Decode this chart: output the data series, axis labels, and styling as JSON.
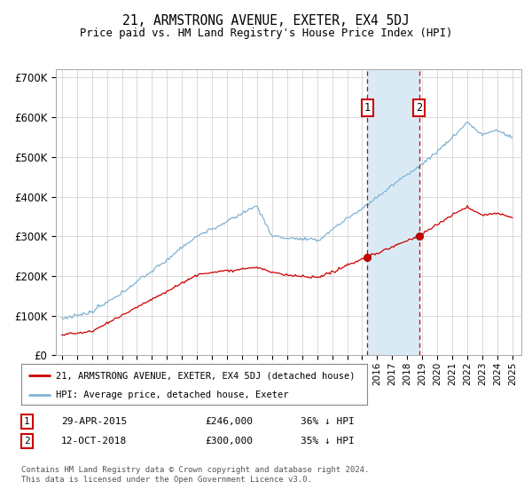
{
  "title": "21, ARMSTRONG AVENUE, EXETER, EX4 5DJ",
  "subtitle": "Price paid vs. HM Land Registry's House Price Index (HPI)",
  "ylabel_ticks": [
    "£0",
    "£100K",
    "£200K",
    "£300K",
    "£400K",
    "£500K",
    "£600K",
    "£700K"
  ],
  "ytick_values": [
    0,
    100000,
    200000,
    300000,
    400000,
    500000,
    600000,
    700000
  ],
  "ylim": [
    0,
    720000
  ],
  "marker1_date": 2015.33,
  "marker2_date": 2018.79,
  "sale1_price": 246000,
  "sale2_price": 300000,
  "hpi_color": "#7fb3d3",
  "price_color": "#cc0000",
  "marker_color": "#cc0000",
  "shade_color": "#daeaf5",
  "legend_entry1": "21, ARMSTRONG AVENUE, EXETER, EX4 5DJ (detached house)",
  "legend_entry2": "HPI: Average price, detached house, Exeter",
  "table_row1": [
    "1",
    "29-APR-2015",
    "£246,000",
    "36% ↓ HPI"
  ],
  "table_row2": [
    "2",
    "12-OCT-2018",
    "£300,000",
    "35% ↓ HPI"
  ],
  "footer": "Contains HM Land Registry data © Crown copyright and database right 2024.\nThis data is licensed under the Open Government Licence v3.0.",
  "background_color": "#ffffff",
  "grid_color": "#cccccc"
}
